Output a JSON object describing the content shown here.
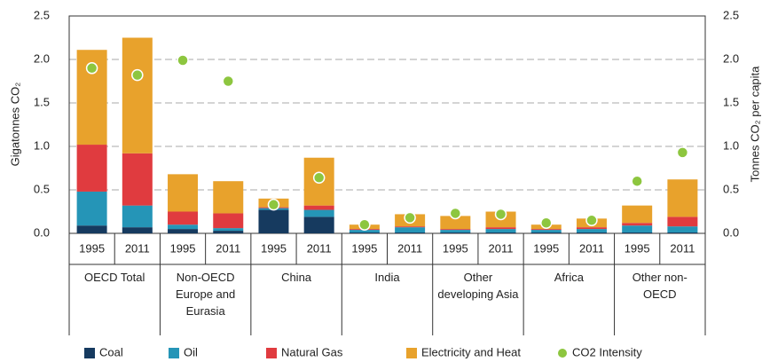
{
  "chart_data": {
    "type": "bar",
    "stacked": true,
    "y_label": "Gigatonnes CO₂",
    "y2_label": "Tonnes CO₂ per capita",
    "categories": [
      "1995",
      "2011",
      "1995",
      "2011",
      "1995",
      "2011",
      "1995",
      "2011",
      "1995",
      "2011",
      "1995",
      "2011",
      "1995",
      "2011"
    ],
    "groups": [
      "OECD Total",
      "Non-OECD Europe and Eurasia",
      "China",
      "India",
      "Other developing Asia",
      "Africa",
      "Other non-OECD"
    ],
    "ylim": [
      0,
      2.5
    ],
    "yticks": [
      {
        "value": 0,
        "label": "0.0"
      },
      0.5,
      {
        "value": 1,
        "label": "1.0"
      },
      1.5,
      {
        "value": 2,
        "label": "2.0"
      },
      2.5
    ],
    "y2lim": [
      0,
      2.5
    ],
    "y2ticks": [
      {
        "value": 0,
        "label": "0.0"
      },
      0.5,
      {
        "value": 1,
        "label": "1.0"
      },
      1.5,
      {
        "value": 2,
        "label": "2.0"
      },
      2.5
    ],
    "grid": true,
    "legend": "bottom",
    "series": [
      {
        "name": "Coal",
        "color": "#163a5f",
        "values": [
          0.09,
          0.07,
          0.05,
          0.03,
          0.27,
          0.19,
          0.01,
          0.01,
          0.01,
          0.01,
          0.01,
          0.01,
          0.01,
          0.01
        ]
      },
      {
        "name": "Oil",
        "color": "#2595b7",
        "values": [
          0.39,
          0.25,
          0.05,
          0.03,
          0.02,
          0.08,
          0.03,
          0.06,
          0.03,
          0.04,
          0.03,
          0.04,
          0.08,
          0.07
        ]
      },
      {
        "name": "Natural Gas",
        "color": "#e03b3f",
        "values": [
          0.54,
          0.6,
          0.15,
          0.17,
          0.01,
          0.05,
          0.01,
          0.01,
          0.01,
          0.02,
          0.01,
          0.02,
          0.03,
          0.11
        ]
      },
      {
        "name": "Electricity and Heat",
        "color": "#e8a22c",
        "values": [
          1.09,
          1.33,
          0.43,
          0.37,
          0.1,
          0.55,
          0.05,
          0.14,
          0.15,
          0.18,
          0.05,
          0.1,
          0.2,
          0.43
        ]
      },
      {
        "name": "CO2 Intensity",
        "type": "scatter",
        "axis": "y2",
        "color": "#8dc63f",
        "values": [
          1.9,
          1.82,
          1.99,
          1.75,
          0.33,
          0.64,
          0.1,
          0.18,
          0.23,
          0.22,
          0.12,
          0.15,
          0.6,
          0.93
        ]
      }
    ]
  }
}
